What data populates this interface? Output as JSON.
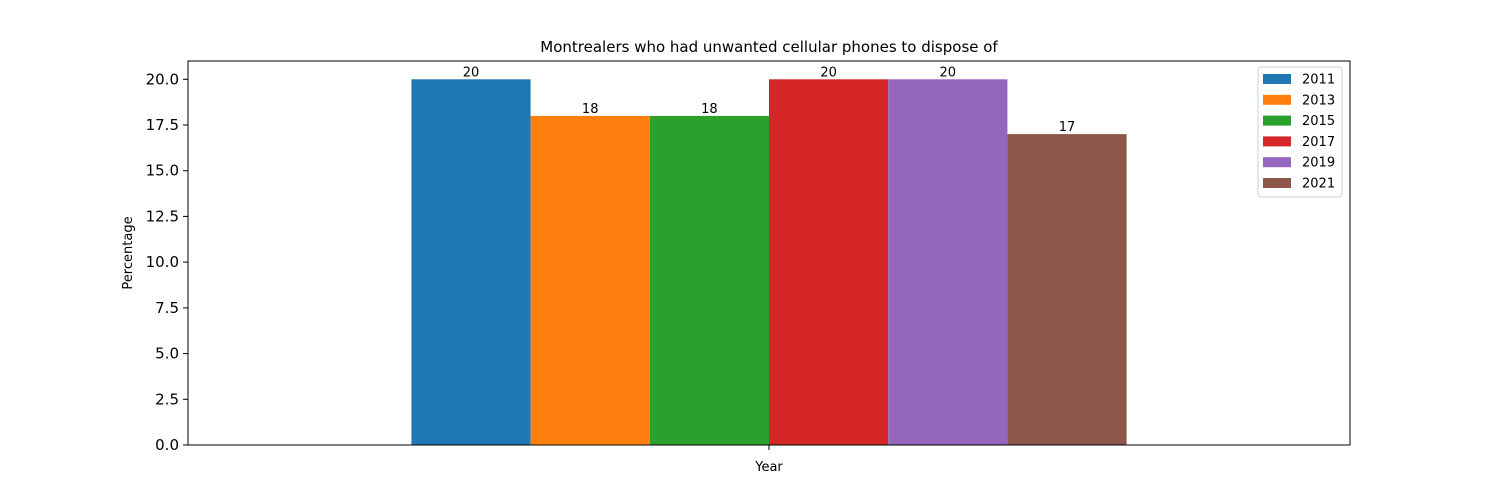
{
  "chart_data": {
    "type": "bar",
    "title": "Montrealers who had unwanted cellular phones to dispose of",
    "xlabel": "Year",
    "ylabel": "Percentage",
    "ylim": [
      0,
      21
    ],
    "yticks": [
      "0.0",
      "2.5",
      "5.0",
      "7.5",
      "10.0",
      "12.5",
      "15.0",
      "17.5",
      "20.0"
    ],
    "grid": false,
    "legend_position": "top-right",
    "series": [
      {
        "name": "2011",
        "value": 20,
        "label": "20",
        "color": "#1f77b4"
      },
      {
        "name": "2013",
        "value": 18,
        "label": "18",
        "color": "#ff7f0e"
      },
      {
        "name": "2015",
        "value": 18,
        "label": "18",
        "color": "#2ca02c"
      },
      {
        "name": "2017",
        "value": 20,
        "label": "20",
        "color": "#d62728"
      },
      {
        "name": "2019",
        "value": 20,
        "label": "20",
        "color": "#9467bd"
      },
      {
        "name": "2021",
        "value": 17,
        "label": "17",
        "color": "#8c564b"
      }
    ]
  }
}
